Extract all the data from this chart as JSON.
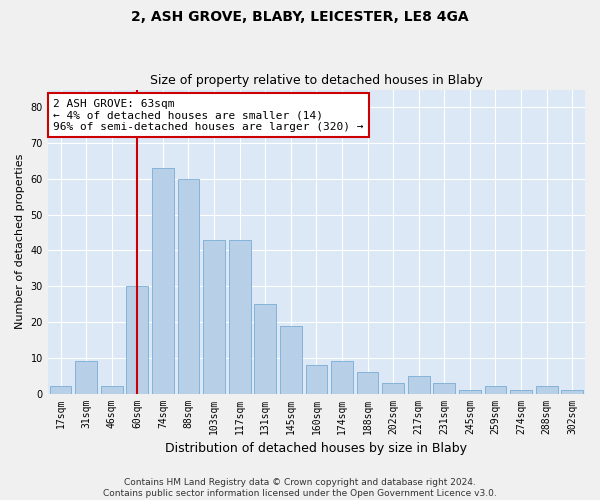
{
  "title1": "2, ASH GROVE, BLABY, LEICESTER, LE8 4GA",
  "title2": "Size of property relative to detached houses in Blaby",
  "xlabel": "Distribution of detached houses by size in Blaby",
  "ylabel": "Number of detached properties",
  "categories": [
    "17sqm",
    "31sqm",
    "46sqm",
    "60sqm",
    "74sqm",
    "88sqm",
    "103sqm",
    "117sqm",
    "131sqm",
    "145sqm",
    "160sqm",
    "174sqm",
    "188sqm",
    "202sqm",
    "217sqm",
    "231sqm",
    "245sqm",
    "259sqm",
    "274sqm",
    "288sqm",
    "302sqm"
  ],
  "values": [
    2,
    9,
    2,
    30,
    63,
    60,
    43,
    43,
    25,
    19,
    8,
    9,
    6,
    3,
    5,
    3,
    1,
    2,
    1,
    2,
    1
  ],
  "bar_color": "#b8cfe8",
  "bar_edge_color": "#7aadd4",
  "vline_x_index": 3,
  "vline_color": "#cc0000",
  "annotation_text": "2 ASH GROVE: 63sqm\n← 4% of detached houses are smaller (14)\n96% of semi-detached houses are larger (320) →",
  "annotation_box_color": "#ffffff",
  "annotation_box_edge": "#cc0000",
  "ylim": [
    0,
    85
  ],
  "yticks": [
    0,
    10,
    20,
    30,
    40,
    50,
    60,
    70,
    80
  ],
  "background_color": "#dce8f5",
  "grid_color": "#ffffff",
  "fig_facecolor": "#f0f0f0",
  "footer": "Contains HM Land Registry data © Crown copyright and database right 2024.\nContains public sector information licensed under the Open Government Licence v3.0.",
  "title1_fontsize": 10,
  "title2_fontsize": 9,
  "xlabel_fontsize": 9,
  "ylabel_fontsize": 8,
  "tick_fontsize": 7,
  "annotation_fontsize": 8,
  "footer_fontsize": 6.5
}
